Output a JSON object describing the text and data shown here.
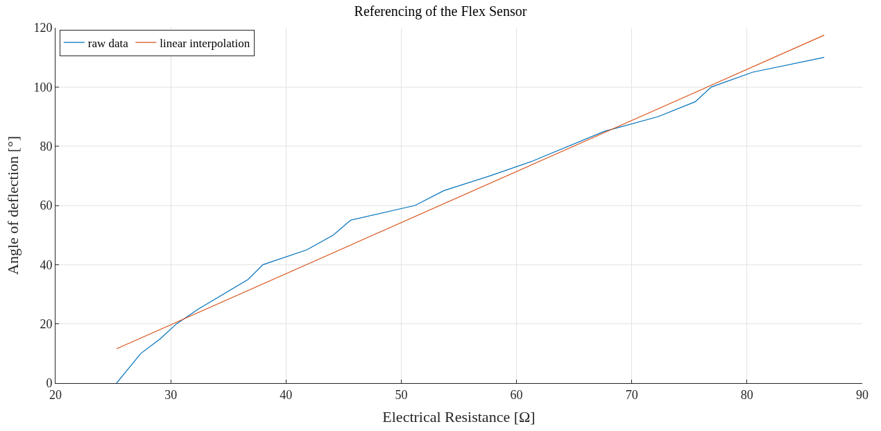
{
  "chart_data": {
    "type": "line",
    "title": "Referencing of the Flex Sensor",
    "xlabel": "Electrical Resistance [Ω]",
    "ylabel": "Angle of deflection [°]",
    "series": [
      {
        "name": "raw data",
        "color": "#0072bd",
        "x": [
          25.3,
          27.4,
          29.1,
          30.5,
          32.4,
          36.7,
          38.0,
          41.8,
          44.1,
          45.6,
          51.2,
          53.7,
          57.7,
          61.4,
          67.6,
          72.3,
          75.5,
          76.9,
          80.5,
          86.7
        ],
        "values": [
          0,
          10,
          15,
          20,
          25,
          35,
          40,
          45,
          50,
          55,
          60,
          65,
          70,
          75,
          85,
          90,
          95,
          100,
          105,
          110
        ]
      },
      {
        "name": "linear interpolation",
        "color": "#d95319",
        "x": [
          25.3,
          86.7
        ],
        "values": [
          11.6,
          117.5
        ]
      }
    ],
    "xlim": [
      20,
      90
    ],
    "xticks": [
      20,
      30,
      40,
      50,
      60,
      70,
      80,
      90
    ],
    "ylim": [
      0,
      120
    ],
    "yticks": [
      0,
      20,
      40,
      60,
      80,
      100,
      120
    ],
    "grid": true,
    "legend": "top left",
    "marker": "none",
    "line_style": "solid"
  }
}
